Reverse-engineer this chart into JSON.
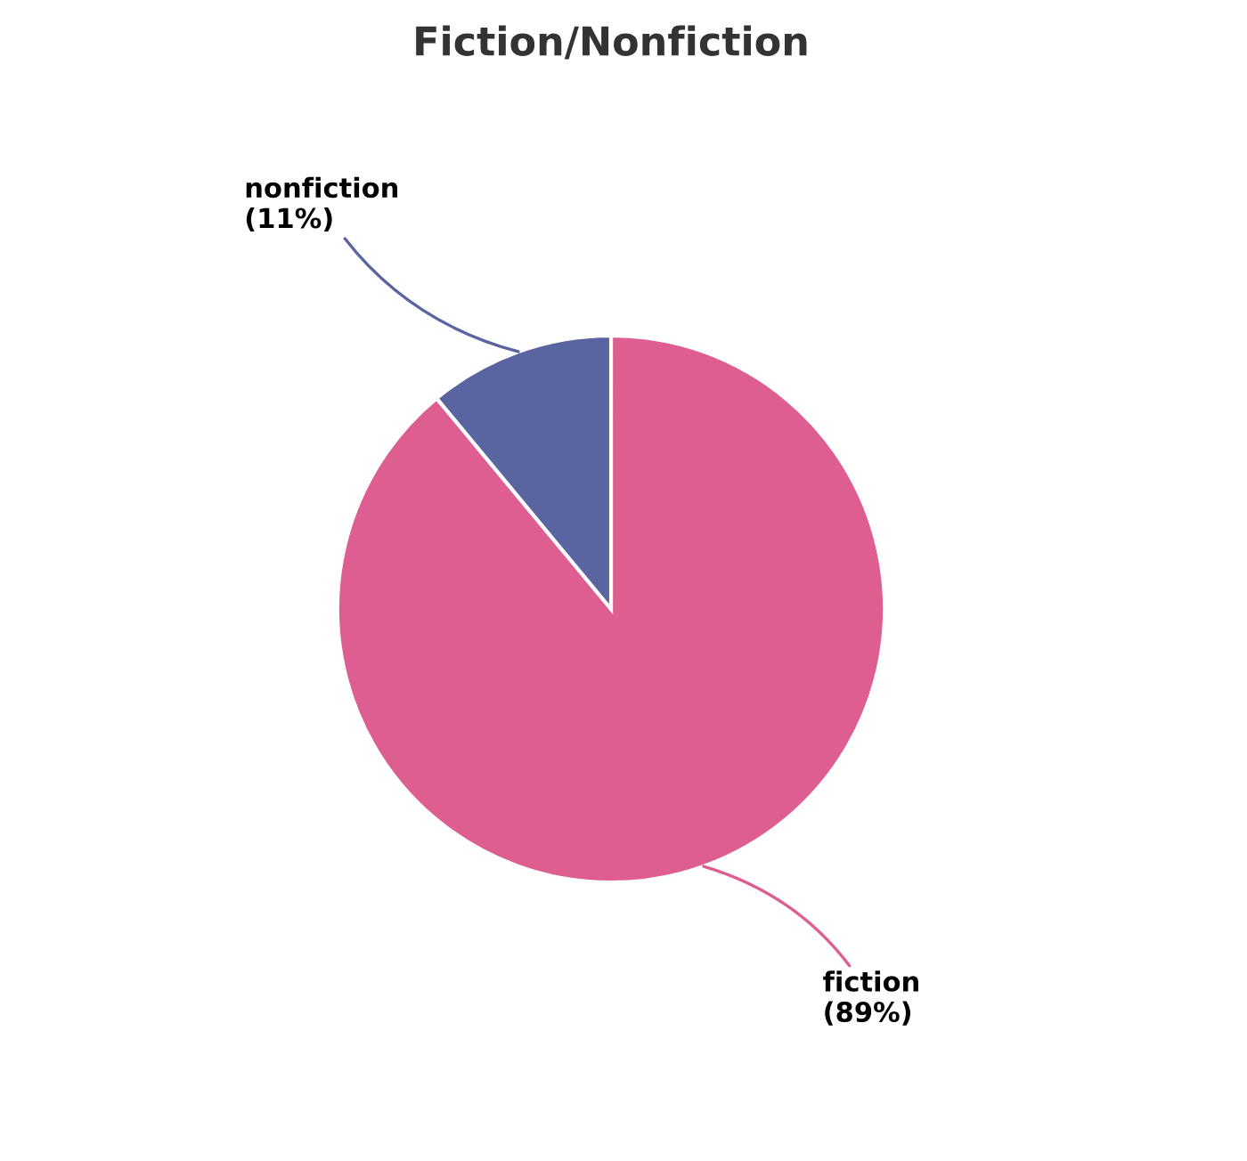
{
  "chart_data": {
    "type": "pie",
    "title": "Fiction/Nonfiction",
    "categories": [
      "fiction",
      "nonfiction"
    ],
    "values": [
      89,
      11
    ],
    "colors": [
      "#de5e91",
      "#5a64a0"
    ],
    "value_labels": [
      "(89%)",
      "(11%)"
    ],
    "legend": false
  }
}
